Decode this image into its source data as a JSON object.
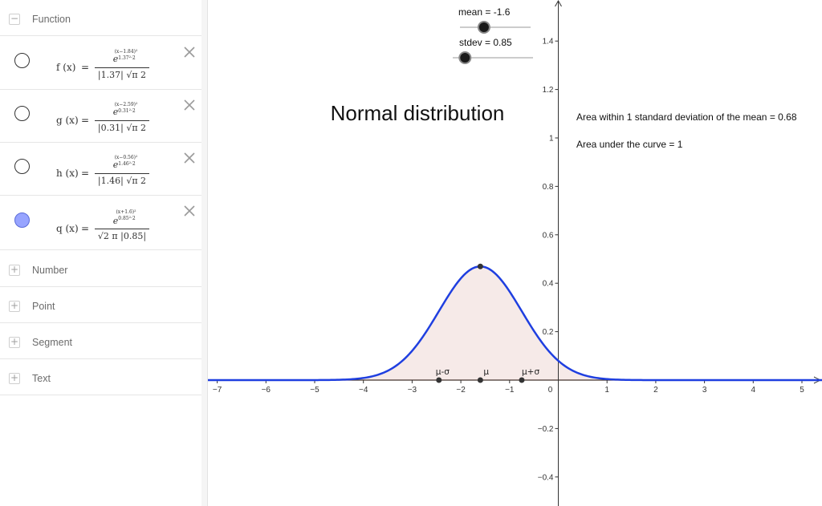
{
  "algebra": {
    "groups": {
      "function": {
        "label": "Function",
        "toggle": "−"
      },
      "number": {
        "label": "Number",
        "toggle": "+"
      },
      "point": {
        "label": "Point",
        "toggle": "+"
      },
      "segment": {
        "label": "Segment",
        "toggle": "+"
      },
      "text": {
        "label": "Text",
        "toggle": "+"
      }
    },
    "functions": [
      {
        "name": "f (x)",
        "eq": "=",
        "num": "e",
        "exp_num": "(x−1.84)²",
        "exp_den": "1.37²·2",
        "den": "|1.37|  √π 2",
        "visible": false
      },
      {
        "name": "g (x)",
        "eq": "=",
        "num": "e",
        "exp_num": "(x−2.59)²",
        "exp_den": "0.31²·2",
        "den": "|0.31|  √π 2",
        "visible": false
      },
      {
        "name": "h (x)",
        "eq": "=",
        "num": "e",
        "exp_num": "(x−0.56)²",
        "exp_den": "1.46²·2",
        "den": "|1.46|  √π 2",
        "visible": false
      },
      {
        "name": "q (x)",
        "eq": "=",
        "num": "e",
        "exp_num": "(x+1.6)²",
        "exp_den": "0.85²·2",
        "den": "√2 π  |0.85|",
        "visible": true
      }
    ],
    "icons": {
      "delete": "close-x-icon",
      "visibility": "visibility-circle-icon"
    }
  },
  "graph": {
    "title": "Normal distribution",
    "annotation_area_1sd": "Area within 1 standard deviation of the mean = 0.68",
    "annotation_area_total": "Area under the curve = 1",
    "sliders": {
      "mean": {
        "label": "mean = -1.6",
        "value": -1.6,
        "min": -5,
        "max": 5
      },
      "stdev": {
        "label": "stdev = 0.85",
        "value": 0.85,
        "min": 0.1,
        "max": 5
      }
    },
    "points": {
      "minus_sigma": "μ-σ",
      "mu": "μ",
      "plus_sigma": "μ+σ"
    },
    "colors": {
      "curve": "#1f3fe0",
      "fill": "#f6eae8",
      "axis": "#333333",
      "point": "#333333",
      "baseline": "#8b3a1a"
    }
  },
  "chart_data": {
    "type": "line",
    "function": "q(x) = e^(-(x+1.6)^2/(2*0.85^2)) / (sqrt(2π)*0.85)",
    "mean": -1.6,
    "stdev": 0.85,
    "peak": {
      "x": -1.6,
      "y": 0.47
    },
    "xlim": [
      -7.2,
      5.4
    ],
    "ylim": [
      -0.45,
      1.55
    ],
    "x_ticks": [
      -7,
      -6,
      -5,
      -4,
      -3,
      -2,
      -1,
      0,
      1,
      2,
      3,
      4,
      5
    ],
    "y_ticks": [
      -0.4,
      -0.2,
      0.2,
      0.4,
      0.6,
      0.8,
      1,
      1.2,
      1.4
    ],
    "x_tick_labels": [
      "−7",
      "−6",
      "−5",
      "−4",
      "−3",
      "−2",
      "−1",
      "0",
      "1",
      "2",
      "3",
      "4",
      "5"
    ],
    "y_tick_labels": [
      "−0.4",
      "−0.2",
      "0.2",
      "0.4",
      "0.6",
      "0.8",
      "1",
      "1.2",
      "1.4"
    ],
    "grid": false
  }
}
